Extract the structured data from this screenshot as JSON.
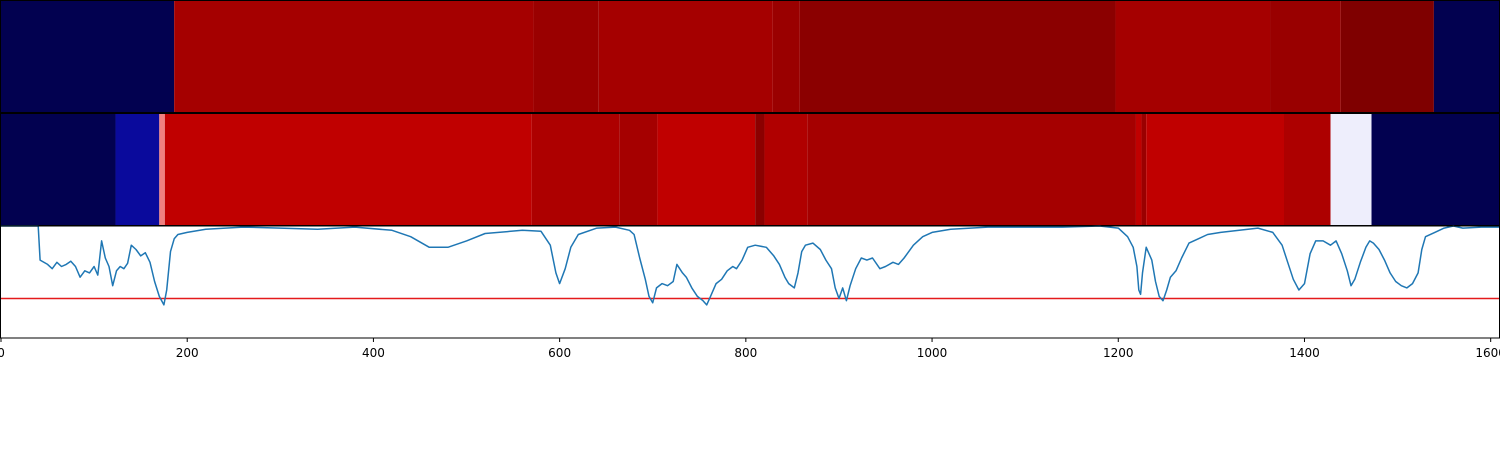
{
  "chart_data": {
    "type": "heatmap",
    "x_range": [
      0,
      1610
    ],
    "xticks": [
      0,
      200,
      400,
      600,
      800,
      1000,
      1200,
      1400,
      1600
    ],
    "xtick_labels": [
      "0",
      "200",
      "400",
      "600",
      "800",
      "1000",
      "1200",
      "1400",
      "1600"
    ],
    "track_1": {
      "segments": [
        {
          "start": 0,
          "end": 186,
          "color": "#020150"
        },
        {
          "start": 186,
          "end": 572,
          "color": "#a50000"
        },
        {
          "start": 572,
          "end": 642,
          "color": "#9a0000"
        },
        {
          "start": 642,
          "end": 829,
          "color": "#a50000"
        },
        {
          "start": 829,
          "end": 858,
          "color": "#9a0000"
        },
        {
          "start": 858,
          "end": 1197,
          "color": "#8b0000"
        },
        {
          "start": 1197,
          "end": 1363,
          "color": "#a50000"
        },
        {
          "start": 1363,
          "end": 1439,
          "color": "#990000"
        },
        {
          "start": 1439,
          "end": 1539,
          "color": "#7f0000"
        },
        {
          "start": 1539,
          "end": 1610,
          "color": "#020150"
        }
      ]
    },
    "track_2": {
      "segments": [
        {
          "start": 0,
          "end": 123,
          "color": "#020150"
        },
        {
          "start": 123,
          "end": 170,
          "color": "#0a0a9c"
        },
        {
          "start": 170,
          "end": 176,
          "color": "#f08080"
        },
        {
          "start": 176,
          "end": 570,
          "color": "#c00000"
        },
        {
          "start": 570,
          "end": 664,
          "color": "#ad0000"
        },
        {
          "start": 664,
          "end": 705,
          "color": "#a50000"
        },
        {
          "start": 705,
          "end": 810,
          "color": "#c00000"
        },
        {
          "start": 810,
          "end": 820,
          "color": "#8b0000"
        },
        {
          "start": 820,
          "end": 866,
          "color": "#b00000"
        },
        {
          "start": 866,
          "end": 1219,
          "color": "#a50000"
        },
        {
          "start": 1219,
          "end": 1225,
          "color": "#c00000"
        },
        {
          "start": 1225,
          "end": 1230,
          "color": "#9a0000"
        },
        {
          "start": 1230,
          "end": 1378,
          "color": "#c00000"
        },
        {
          "start": 1378,
          "end": 1428,
          "color": "#ad0000"
        },
        {
          "start": 1428,
          "end": 1472,
          "color": "#eeeefc"
        },
        {
          "start": 1472,
          "end": 1610,
          "color": "#020150"
        }
      ]
    },
    "line": {
      "color": "#1f77b4",
      "y_range": [
        -0.05,
        1.0
      ],
      "threshold": 0.32,
      "threshold_color": "#e41a1c",
      "points": [
        [
          0,
          1.0
        ],
        [
          40,
          1.0
        ],
        [
          42,
          0.68
        ],
        [
          50,
          0.64
        ],
        [
          55,
          0.6
        ],
        [
          60,
          0.66
        ],
        [
          65,
          0.62
        ],
        [
          70,
          0.64
        ],
        [
          75,
          0.67
        ],
        [
          80,
          0.62
        ],
        [
          85,
          0.52
        ],
        [
          90,
          0.58
        ],
        [
          95,
          0.56
        ],
        [
          100,
          0.62
        ],
        [
          104,
          0.54
        ],
        [
          108,
          0.86
        ],
        [
          112,
          0.7
        ],
        [
          116,
          0.62
        ],
        [
          120,
          0.44
        ],
        [
          124,
          0.58
        ],
        [
          128,
          0.62
        ],
        [
          132,
          0.6
        ],
        [
          136,
          0.65
        ],
        [
          140,
          0.82
        ],
        [
          145,
          0.78
        ],
        [
          150,
          0.72
        ],
        [
          155,
          0.75
        ],
        [
          160,
          0.66
        ],
        [
          165,
          0.48
        ],
        [
          170,
          0.34
        ],
        [
          175,
          0.26
        ],
        [
          178,
          0.4
        ],
        [
          182,
          0.76
        ],
        [
          186,
          0.88
        ],
        [
          190,
          0.92
        ],
        [
          200,
          0.94
        ],
        [
          220,
          0.97
        ],
        [
          260,
          0.99
        ],
        [
          300,
          0.98
        ],
        [
          340,
          0.97
        ],
        [
          380,
          0.99
        ],
        [
          420,
          0.96
        ],
        [
          440,
          0.9
        ],
        [
          460,
          0.8
        ],
        [
          480,
          0.8
        ],
        [
          500,
          0.86
        ],
        [
          520,
          0.93
        ],
        [
          560,
          0.96
        ],
        [
          580,
          0.95
        ],
        [
          590,
          0.82
        ],
        [
          596,
          0.56
        ],
        [
          600,
          0.46
        ],
        [
          606,
          0.6
        ],
        [
          612,
          0.8
        ],
        [
          620,
          0.92
        ],
        [
          640,
          0.98
        ],
        [
          660,
          0.99
        ],
        [
          675,
          0.96
        ],
        [
          680,
          0.92
        ],
        [
          686,
          0.7
        ],
        [
          692,
          0.5
        ],
        [
          696,
          0.34
        ],
        [
          700,
          0.28
        ],
        [
          704,
          0.42
        ],
        [
          710,
          0.46
        ],
        [
          716,
          0.44
        ],
        [
          722,
          0.48
        ],
        [
          726,
          0.64
        ],
        [
          732,
          0.56
        ],
        [
          736,
          0.52
        ],
        [
          742,
          0.42
        ],
        [
          748,
          0.34
        ],
        [
          754,
          0.3
        ],
        [
          758,
          0.26
        ],
        [
          762,
          0.34
        ],
        [
          768,
          0.46
        ],
        [
          774,
          0.5
        ],
        [
          780,
          0.58
        ],
        [
          786,
          0.62
        ],
        [
          790,
          0.6
        ],
        [
          796,
          0.68
        ],
        [
          802,
          0.8
        ],
        [
          810,
          0.82
        ],
        [
          822,
          0.8
        ],
        [
          830,
          0.72
        ],
        [
          836,
          0.64
        ],
        [
          842,
          0.52
        ],
        [
          846,
          0.46
        ],
        [
          852,
          0.42
        ],
        [
          856,
          0.56
        ],
        [
          860,
          0.76
        ],
        [
          864,
          0.82
        ],
        [
          872,
          0.84
        ],
        [
          880,
          0.78
        ],
        [
          886,
          0.68
        ],
        [
          892,
          0.6
        ],
        [
          896,
          0.42
        ],
        [
          900,
          0.32
        ],
        [
          904,
          0.42
        ],
        [
          908,
          0.3
        ],
        [
          912,
          0.44
        ],
        [
          918,
          0.6
        ],
        [
          924,
          0.7
        ],
        [
          930,
          0.68
        ],
        [
          936,
          0.7
        ],
        [
          944,
          0.6
        ],
        [
          950,
          0.62
        ],
        [
          958,
          0.66
        ],
        [
          964,
          0.64
        ],
        [
          970,
          0.7
        ],
        [
          980,
          0.82
        ],
        [
          990,
          0.9
        ],
        [
          1000,
          0.94
        ],
        [
          1020,
          0.97
        ],
        [
          1060,
          0.99
        ],
        [
          1100,
          0.99
        ],
        [
          1140,
          0.99
        ],
        [
          1180,
          1.0
        ],
        [
          1200,
          0.98
        ],
        [
          1210,
          0.9
        ],
        [
          1216,
          0.8
        ],
        [
          1220,
          0.62
        ],
        [
          1222,
          0.4
        ],
        [
          1224,
          0.36
        ],
        [
          1226,
          0.56
        ],
        [
          1230,
          0.8
        ],
        [
          1236,
          0.68
        ],
        [
          1240,
          0.48
        ],
        [
          1244,
          0.34
        ],
        [
          1248,
          0.3
        ],
        [
          1252,
          0.4
        ],
        [
          1256,
          0.52
        ],
        [
          1262,
          0.58
        ],
        [
          1268,
          0.7
        ],
        [
          1276,
          0.84
        ],
        [
          1286,
          0.88
        ],
        [
          1296,
          0.92
        ],
        [
          1310,
          0.94
        ],
        [
          1330,
          0.96
        ],
        [
          1350,
          0.98
        ],
        [
          1366,
          0.94
        ],
        [
          1376,
          0.82
        ],
        [
          1382,
          0.66
        ],
        [
          1388,
          0.5
        ],
        [
          1394,
          0.4
        ],
        [
          1400,
          0.46
        ],
        [
          1406,
          0.74
        ],
        [
          1412,
          0.86
        ],
        [
          1420,
          0.86
        ],
        [
          1428,
          0.82
        ],
        [
          1434,
          0.86
        ],
        [
          1440,
          0.74
        ],
        [
          1446,
          0.58
        ],
        [
          1450,
          0.44
        ],
        [
          1454,
          0.5
        ],
        [
          1460,
          0.66
        ],
        [
          1466,
          0.8
        ],
        [
          1470,
          0.86
        ],
        [
          1474,
          0.84
        ],
        [
          1480,
          0.78
        ],
        [
          1486,
          0.68
        ],
        [
          1492,
          0.56
        ],
        [
          1498,
          0.48
        ],
        [
          1504,
          0.44
        ],
        [
          1510,
          0.42
        ],
        [
          1516,
          0.46
        ],
        [
          1522,
          0.56
        ],
        [
          1526,
          0.78
        ],
        [
          1530,
          0.9
        ],
        [
          1540,
          0.94
        ],
        [
          1550,
          0.98
        ],
        [
          1560,
          1.0
        ],
        [
          1570,
          0.98
        ],
        [
          1590,
          0.99
        ],
        [
          1610,
          0.99
        ]
      ]
    }
  }
}
